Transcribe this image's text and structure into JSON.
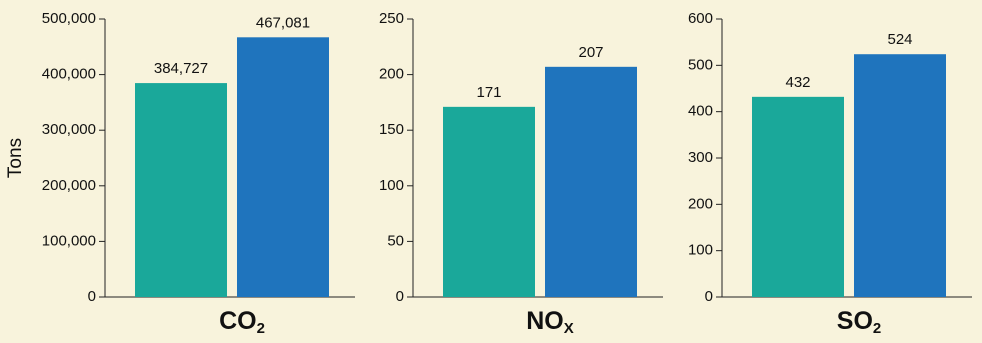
{
  "chart_data": [
    {
      "type": "bar",
      "ylabel": "Tons",
      "xlabel": [
        "CO",
        "2"
      ],
      "categories": [
        null,
        null
      ],
      "values": [
        384727,
        467081
      ],
      "value_labels": [
        "384,727",
        "467,081"
      ],
      "colors": [
        "#1aa89a",
        "#1f74bd"
      ],
      "ylim": [
        0,
        500000
      ],
      "yticks": [
        0,
        {
          "value": 100000,
          "label": "100,000"
        },
        {
          "value": 200000,
          "label": "200,000"
        },
        {
          "value": 300000,
          "label": "300,000"
        },
        {
          "value": 400000,
          "label": "400,000"
        },
        {
          "value": 500000,
          "label": "500,000"
        }
      ]
    },
    {
      "type": "bar",
      "xlabel": [
        "NO",
        "X"
      ],
      "categories": [
        null,
        null
      ],
      "values": [
        171,
        207
      ],
      "colors": [
        "#1aa89a",
        "#1f74bd"
      ],
      "ylim": [
        0,
        250
      ],
      "yticks": [
        0,
        50,
        100,
        150,
        200,
        250
      ]
    },
    {
      "type": "bar",
      "xlabel": [
        "SO",
        "2"
      ],
      "categories": [
        null,
        null
      ],
      "values": [
        432,
        524
      ],
      "colors": [
        "#1aa89a",
        "#1f74bd"
      ],
      "ylim": [
        0,
        600
      ],
      "yticks": [
        0,
        100,
        200,
        300,
        400,
        500,
        600
      ]
    }
  ]
}
